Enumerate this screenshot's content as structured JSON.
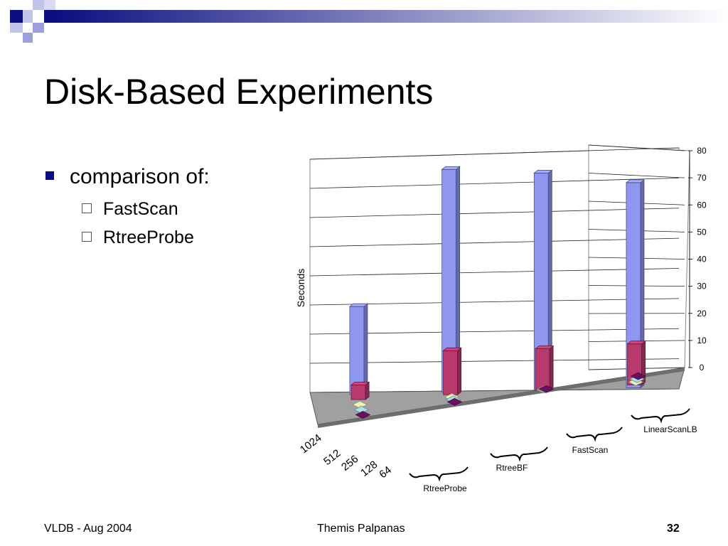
{
  "slide": {
    "title": "Disk-Based Experiments",
    "bullets": [
      {
        "text": "comparison of:",
        "sub": [
          "FastScan",
          "RtreeProbe"
        ]
      }
    ],
    "footer": {
      "left": "VLDB - Aug 2004",
      "center": "Themis Palpanas",
      "page": "32"
    }
  },
  "chart_data": {
    "type": "bar",
    "subtype": "3d-grouped-column",
    "ylabel": "Seconds",
    "ylim": [
      0,
      80
    ],
    "yticks": [
      0,
      10,
      20,
      30,
      40,
      50,
      60,
      70,
      80
    ],
    "groups": [
      "RtreeProbe",
      "RtreeBF",
      "FastScan",
      "LinearScanLB"
    ],
    "depth_labels": [
      "1024",
      "512",
      "256",
      "128",
      "64"
    ],
    "series": [
      {
        "name": "1024",
        "color": "#8f96f0",
        "values": [
          30,
          76,
          74,
          70
        ]
      },
      {
        "name": "512",
        "color": "#b83a6c",
        "values": [
          5,
          15,
          14,
          14
        ]
      },
      {
        "name": "256",
        "color": "#f0f0b8",
        "values": [
          0.5,
          0.5,
          0.5,
          0.5
        ]
      },
      {
        "name": "128",
        "color": "#a8e0e8",
        "values": [
          0.5,
          0.5,
          0.5,
          0.5
        ]
      },
      {
        "name": "64",
        "color": "#6a1060",
        "values": [
          0.5,
          0.5,
          0.5,
          0.5
        ]
      }
    ],
    "grid": true
  },
  "theme": {
    "accent": "#0b0f80",
    "floor": "#a0a0a0"
  }
}
